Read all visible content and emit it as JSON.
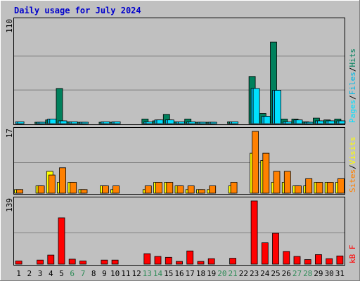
{
  "title": "Daily usage for July 2024",
  "colors": {
    "background": "#c0c0c0",
    "panel_border": "#000000",
    "title": "#0000cc",
    "weekday_label": "#000000",
    "weekend_label": "#2e8b57",
    "hits": "#00805c",
    "files": "#00b8e6",
    "pages": "#00e0ff",
    "visits": "#ffff00",
    "sites": "#ff8000",
    "kbytes": "#ff0000",
    "gridline": "#808080"
  },
  "chart_data": {
    "type": "bar",
    "title": "Daily usage for July 2024",
    "days": [
      "1",
      "2",
      "3",
      "4",
      "5",
      "6",
      "7",
      "8",
      "9",
      "10",
      "11",
      "12",
      "13",
      "14",
      "15",
      "16",
      "17",
      "18",
      "19",
      "20",
      "21",
      "22",
      "23",
      "24",
      "25",
      "26",
      "27",
      "28",
      "29",
      "30",
      "31"
    ],
    "weekend_days": [
      "6",
      "7",
      "13",
      "14",
      "20",
      "21",
      "27",
      "28"
    ],
    "panels": [
      {
        "id": "hits_files_pages",
        "ymax_label": "110",
        "ymax": 110,
        "series": [
          {
            "name": "Hits",
            "values": [
              0,
              0,
              1,
              4,
              38,
              2,
              1,
              0,
              1,
              1,
              0,
              0,
              5,
              3,
              10,
              2,
              5,
              1,
              1,
              0,
              2,
              0,
              51,
              11,
              88,
              5,
              5,
              2,
              6,
              4,
              5
            ]
          },
          {
            "name": "Files",
            "values": [
              2,
              0,
              1,
              5,
              3,
              2,
              1,
              0,
              2,
              2,
              0,
              0,
              2,
              4,
              4,
              2,
              2,
              1,
              1,
              0,
              2,
              0,
              38,
              8,
              36,
              2,
              4,
              1,
              3,
              3,
              3
            ]
          },
          {
            "name": "Pages",
            "values": [
              2,
              0,
              1,
              5,
              3,
              2,
              1,
              0,
              2,
              2,
              0,
              0,
              2,
              4,
              4,
              2,
              2,
              1,
              1,
              0,
              2,
              0,
              38,
              8,
              36,
              2,
              4,
              1,
              3,
              3,
              3
            ]
          }
        ],
        "legend": [
          {
            "text": "Pages",
            "color_key": "pages"
          },
          {
            "text": "/",
            "color_key": "weekday_label"
          },
          {
            "text": "Files",
            "color_key": "files"
          },
          {
            "text": "/",
            "color_key": "weekday_label"
          },
          {
            "text": "Hits",
            "color_key": "hits"
          }
        ]
      },
      {
        "id": "visits_sites",
        "ymax_label": "17",
        "ymax": 17,
        "series": [
          {
            "name": "Visits",
            "values": [
              1,
              0,
              2,
              6,
              3,
              3,
              1,
              0,
              2,
              1,
              0,
              0,
              1,
              3,
              3,
              2,
              1,
              1,
              1,
              0,
              2,
              0,
              11,
              9,
              3,
              3,
              2,
              2,
              3,
              3,
              3
            ]
          },
          {
            "name": "Sites",
            "values": [
              1,
              0,
              2,
              5,
              7,
              3,
              1,
              0,
              2,
              2,
              0,
              0,
              2,
              3,
              3,
              2,
              2,
              1,
              2,
              0,
              3,
              0,
              17,
              11,
              6,
              6,
              2,
              4,
              3,
              3,
              4
            ]
          }
        ],
        "legend": [
          {
            "text": "Sites",
            "color_key": "sites"
          },
          {
            "text": "/",
            "color_key": "weekday_label"
          },
          {
            "text": "Visits",
            "color_key": "visits"
          }
        ]
      },
      {
        "id": "kbytes",
        "ymax_label": "139",
        "ymax": 139,
        "series": [
          {
            "name": "kB F",
            "values": [
              7,
              0,
              9,
              20,
              102,
              11,
              7,
              0,
              9,
              9,
              0,
              0,
              23,
              17,
              15,
              6,
              29,
              6,
              12,
              0,
              13,
              0,
              139,
              47,
              68,
              28,
              17,
              10,
              21,
              12,
              18
            ]
          }
        ],
        "legend": [
          {
            "text": "kB F",
            "color_key": "kbytes"
          }
        ]
      }
    ]
  }
}
